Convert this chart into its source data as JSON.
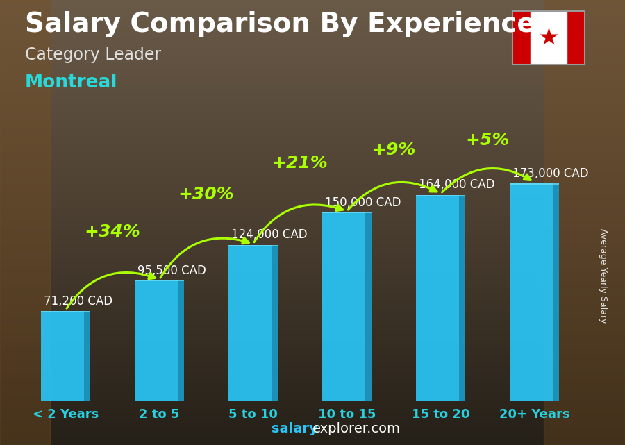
{
  "title": "Salary Comparison By Experience",
  "subtitle": "Category Leader",
  "city": "Montreal",
  "categories": [
    "< 2 Years",
    "2 to 5",
    "5 to 10",
    "10 to 15",
    "15 to 20",
    "20+ Years"
  ],
  "values": [
    71200,
    95500,
    124000,
    150000,
    164000,
    173000
  ],
  "labels": [
    "71,200 CAD",
    "95,500 CAD",
    "124,000 CAD",
    "150,000 CAD",
    "164,000 CAD",
    "173,000 CAD"
  ],
  "pct_changes": [
    "+34%",
    "+30%",
    "+21%",
    "+9%",
    "+5%"
  ],
  "bar_color_main": "#29c5f6",
  "bar_color_dark": "#1a8ab0",
  "bar_color_light": "#4dd8ff",
  "pct_color": "#aaff00",
  "label_color": "#ffffff",
  "title_color": "#ffffff",
  "subtitle_color": "#e0e0e0",
  "city_color": "#29d9d9",
  "watermark_bold_color": "#29c5f6",
  "watermark_normal_color": "#ffffff",
  "ylabel": "Average Yearly Salary",
  "watermark_bold": "salary",
  "watermark_normal": "explorer.com",
  "bg_top": "#5a5040",
  "bg_mid": "#3a3028",
  "bg_bottom": "#252018",
  "ylim": [
    0,
    220000
  ],
  "title_fontsize": 28,
  "subtitle_fontsize": 17,
  "city_fontsize": 19,
  "bar_label_fontsize": 12,
  "pct_fontsize": 18,
  "ylabel_fontsize": 9,
  "xtick_fontsize": 13,
  "watermark_fontsize": 14,
  "bar_width": 0.52
}
